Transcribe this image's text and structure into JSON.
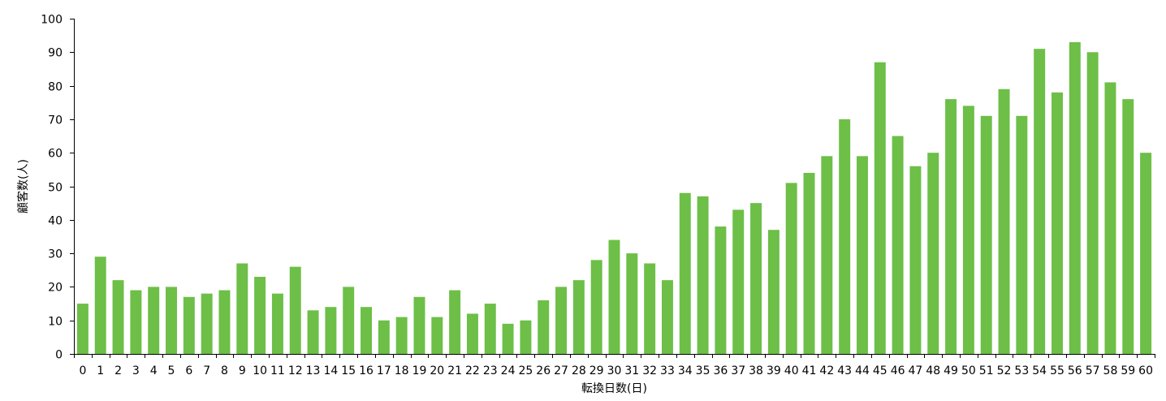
{
  "chart_data": {
    "type": "bar",
    "title": "",
    "xlabel": "転換日数(日)",
    "ylabel": "顧客数(人)",
    "ylim": [
      0,
      100
    ],
    "yticks": [
      0,
      10,
      20,
      30,
      40,
      50,
      60,
      70,
      80,
      90,
      100
    ],
    "grid": false,
    "bar_color": "#6dbf47",
    "categories": [
      "0",
      "1",
      "2",
      "3",
      "4",
      "5",
      "6",
      "7",
      "8",
      "9",
      "10",
      "11",
      "12",
      "13",
      "14",
      "15",
      "16",
      "17",
      "18",
      "19",
      "20",
      "21",
      "22",
      "23",
      "24",
      "25",
      "26",
      "27",
      "28",
      "29",
      "30",
      "31",
      "32",
      "33",
      "34",
      "35",
      "36",
      "37",
      "38",
      "39",
      "40",
      "41",
      "42",
      "43",
      "44",
      "45",
      "46",
      "47",
      "48",
      "49",
      "50",
      "51",
      "52",
      "53",
      "54",
      "55",
      "56",
      "57",
      "58",
      "59",
      "60"
    ],
    "values": [
      15,
      29,
      22,
      19,
      20,
      20,
      17,
      18,
      19,
      27,
      23,
      18,
      26,
      13,
      14,
      20,
      14,
      10,
      11,
      17,
      11,
      19,
      12,
      15,
      9,
      10,
      16,
      20,
      22,
      28,
      34,
      30,
      27,
      22,
      48,
      47,
      38,
      43,
      45,
      37,
      51,
      54,
      59,
      70,
      59,
      87,
      65,
      56,
      60,
      76,
      74,
      71,
      79,
      71,
      91,
      78,
      93,
      90,
      81,
      76,
      60
    ]
  }
}
